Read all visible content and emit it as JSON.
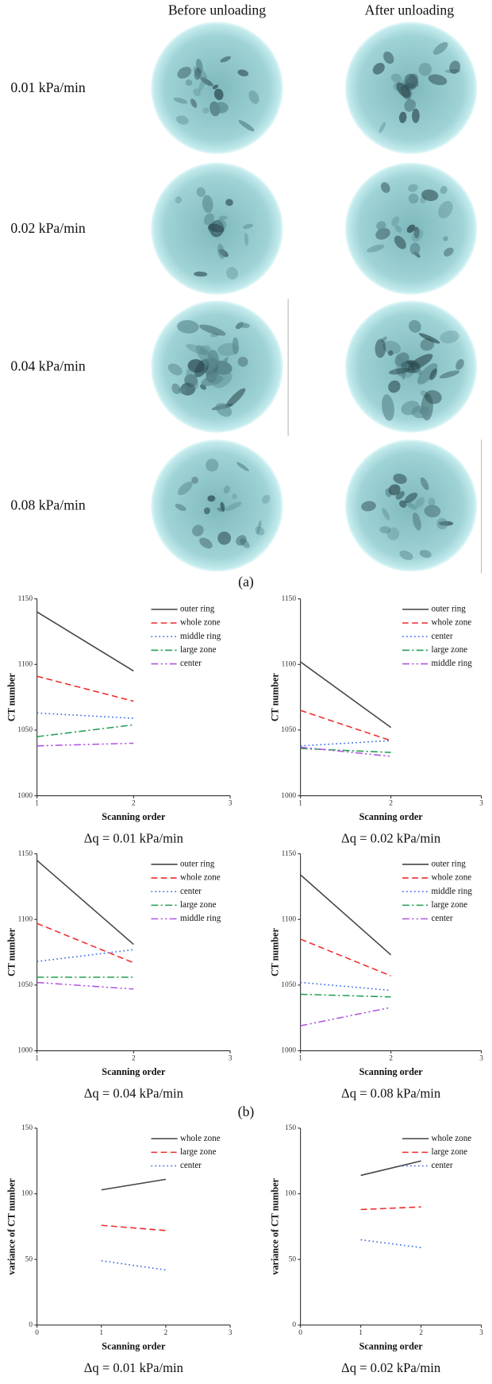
{
  "panel_a": {
    "columns": [
      "Before unloading",
      "After unloading"
    ],
    "rows": [
      "0.01 kPa/min",
      "0.02 kPa/min",
      "0.04 kPa/min",
      "0.08 kPa/min"
    ],
    "label": "(a)"
  },
  "panel_b_label": "(b)",
  "chart_data": [
    {
      "type": "line",
      "caption": "Δq = 0.01 kPa/min",
      "x_label": "Scanning order",
      "y_label": "CT number",
      "x": [
        1,
        2
      ],
      "xlim": [
        1,
        3
      ],
      "xticks": [
        1,
        2,
        3
      ],
      "ylim": [
        1000,
        1150
      ],
      "yticks": [
        1000,
        1050,
        1100,
        1150
      ],
      "legend": "upper right",
      "series": [
        {
          "name": "outer ring",
          "color": "#444444",
          "values": [
            1140,
            1095
          ]
        },
        {
          "name": "whole zone",
          "color": "#ee2b2b",
          "values": [
            1091,
            1072
          ]
        },
        {
          "name": "middle ring",
          "color": "#3366dd",
          "values": [
            1063,
            1059
          ]
        },
        {
          "name": "large zone",
          "color": "#22a050",
          "values": [
            1045,
            1054
          ]
        },
        {
          "name": "center",
          "color": "#b055e0",
          "values": [
            1038,
            1040
          ]
        }
      ]
    },
    {
      "type": "line",
      "caption": "Δq = 0.02 kPa/min",
      "x_label": "Scanning order",
      "y_label": "CT number",
      "x": [
        1,
        2
      ],
      "xlim": [
        1,
        3
      ],
      "xticks": [
        1,
        2,
        3
      ],
      "ylim": [
        1000,
        1150
      ],
      "yticks": [
        1000,
        1050,
        1100,
        1150
      ],
      "legend": "upper right",
      "series": [
        {
          "name": "outer ring",
          "color": "#444444",
          "values": [
            1102,
            1052
          ]
        },
        {
          "name": "whole zone",
          "color": "#ee2b2b",
          "values": [
            1065,
            1042
          ]
        },
        {
          "name": "center",
          "color": "#3366dd",
          "values": [
            1038,
            1042
          ]
        },
        {
          "name": "large zone",
          "color": "#22a050",
          "values": [
            1036,
            1033
          ]
        },
        {
          "name": "middle ring",
          "color": "#b055e0",
          "values": [
            1037,
            1030
          ]
        }
      ]
    },
    {
      "type": "line",
      "caption": "Δq = 0.04 kPa/min",
      "x_label": "Scanning order",
      "y_label": "CT number",
      "x": [
        1,
        2
      ],
      "xlim": [
        1,
        3
      ],
      "xticks": [
        1,
        2,
        3
      ],
      "ylim": [
        1000,
        1150
      ],
      "yticks": [
        1000,
        1050,
        1100,
        1150
      ],
      "legend": "upper right",
      "series": [
        {
          "name": "outer ring",
          "color": "#444444",
          "values": [
            1145,
            1081
          ]
        },
        {
          "name": "whole zone",
          "color": "#ee2b2b",
          "values": [
            1097,
            1067
          ]
        },
        {
          "name": "center",
          "color": "#3366dd",
          "values": [
            1068,
            1077
          ]
        },
        {
          "name": "large zone",
          "color": "#22a050",
          "values": [
            1056,
            1056
          ]
        },
        {
          "name": "middle ring",
          "color": "#b055e0",
          "values": [
            1052,
            1047
          ]
        }
      ]
    },
    {
      "type": "line",
      "caption": "Δq = 0.08 kPa/min",
      "x_label": "Scanning order",
      "y_label": "CT number",
      "x": [
        1,
        2
      ],
      "xlim": [
        1,
        3
      ],
      "xticks": [
        1,
        2,
        3
      ],
      "ylim": [
        1000,
        1150
      ],
      "yticks": [
        1000,
        1050,
        1100,
        1150
      ],
      "legend": "upper right",
      "series": [
        {
          "name": "outer ring",
          "color": "#444444",
          "values": [
            1134,
            1073
          ]
        },
        {
          "name": "whole zone",
          "color": "#ee2b2b",
          "values": [
            1085,
            1057
          ]
        },
        {
          "name": "middle ring",
          "color": "#3366dd",
          "values": [
            1052,
            1046
          ]
        },
        {
          "name": "large zone",
          "color": "#22a050",
          "values": [
            1043,
            1041
          ]
        },
        {
          "name": "center",
          "color": "#b055e0",
          "values": [
            1019,
            1033
          ]
        }
      ]
    },
    {
      "type": "line",
      "caption": "Δq = 0.01 kPa/min",
      "x_label": "Scanning order",
      "y_label": "variance of CT number",
      "x": [
        1,
        2
      ],
      "xlim": [
        0,
        3
      ],
      "xticks": [
        0,
        1,
        2,
        3
      ],
      "ylim": [
        0,
        150
      ],
      "yticks": [
        0,
        50,
        100,
        150
      ],
      "legend": "upper right",
      "series": [
        {
          "name": "whole zone",
          "color": "#444444",
          "values": [
            103,
            111
          ]
        },
        {
          "name": "large zone",
          "color": "#ee2b2b",
          "values": [
            76,
            72
          ]
        },
        {
          "name": "center",
          "color": "#3366dd",
          "values": [
            49,
            42
          ]
        }
      ]
    },
    {
      "type": "line",
      "caption": "Δq = 0.02 kPa/min",
      "x_label": "Scanning order",
      "y_label": "variance of CT number",
      "x": [
        1,
        2
      ],
      "xlim": [
        0,
        3
      ],
      "xticks": [
        0,
        1,
        2,
        3
      ],
      "ylim": [
        0,
        150
      ],
      "yticks": [
        0,
        50,
        100,
        150
      ],
      "legend": "upper right",
      "series": [
        {
          "name": "whole zone",
          "color": "#444444",
          "values": [
            114,
            125
          ]
        },
        {
          "name": "large zone",
          "color": "#ee2b2b",
          "values": [
            88,
            90
          ]
        },
        {
          "name": "center",
          "color": "#3366dd",
          "values": [
            65,
            59
          ]
        }
      ]
    }
  ]
}
